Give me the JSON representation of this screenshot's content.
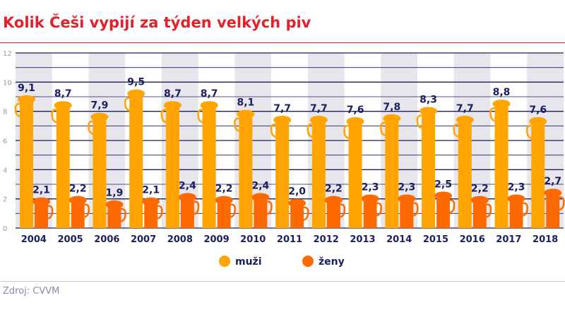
{
  "title": "Kolik Češi vypijí za týden velkých piv",
  "source": "Zdroj: CVVM",
  "chart_data": {
    "type": "bar",
    "title": "Kolik Češi vypijí za týden velkých piv",
    "categories": [
      "2004",
      "2005",
      "2006",
      "2007",
      "2008",
      "2009",
      "2010",
      "2011",
      "2012",
      "2013",
      "2014",
      "2015",
      "2016",
      "2017",
      "2018"
    ],
    "series": [
      {
        "name": "muži",
        "color": "#ffa400",
        "values": [
          9.1,
          8.7,
          7.9,
          9.5,
          8.7,
          8.7,
          8.1,
          7.7,
          7.7,
          7.6,
          7.8,
          8.3,
          7.7,
          8.8,
          7.6
        ]
      },
      {
        "name": "ženy",
        "color": "#ff6a00",
        "values": [
          2.1,
          2.2,
          1.9,
          2.1,
          2.4,
          2.2,
          2.4,
          2.0,
          2.2,
          2.3,
          2.3,
          2.5,
          2.2,
          2.3,
          2.7
        ]
      }
    ],
    "ylim": [
      0,
      12
    ],
    "yticks": [
      "0",
      "2",
      "4",
      "6",
      "8",
      "10",
      "12"
    ],
    "grid": true,
    "legend": "bottom",
    "decimal_separator": ","
  }
}
